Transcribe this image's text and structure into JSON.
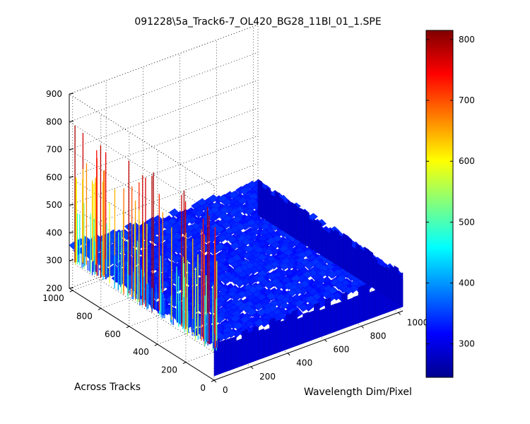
{
  "chart_data": {
    "type": "surface3d",
    "title": "091228\\5a_Track6-7_OL420_BG28_11Bl_01_1.SPE",
    "xlabel": "Wavelength Dim/Pixel",
    "ylabel": "Across Tracks",
    "zlabel": "",
    "xlim": [
      0,
      1024
    ],
    "ylim": [
      0,
      1024
    ],
    "zlim": [
      200,
      900
    ],
    "x_ticks": [
      "0",
      "200",
      "400",
      "600",
      "800",
      "1000"
    ],
    "y_ticks": [
      "0",
      "200",
      "400",
      "600",
      "800",
      "1000"
    ],
    "z_ticks": [
      "200",
      "300",
      "400",
      "500",
      "600",
      "700",
      "800",
      "900"
    ],
    "grid": true,
    "colormap": "jet",
    "colorbar": {
      "range": [
        245,
        815
      ],
      "ticks": [
        "300",
        "400",
        "500",
        "600",
        "700",
        "800"
      ]
    },
    "surface_summary": {
      "background_level": 310,
      "noise_max": 345,
      "corner_peak_near": [
        0,
        1024,
        370
      ],
      "spike_band_columns_x": [
        0,
        40
      ],
      "spike_peak_max": 800
    }
  }
}
